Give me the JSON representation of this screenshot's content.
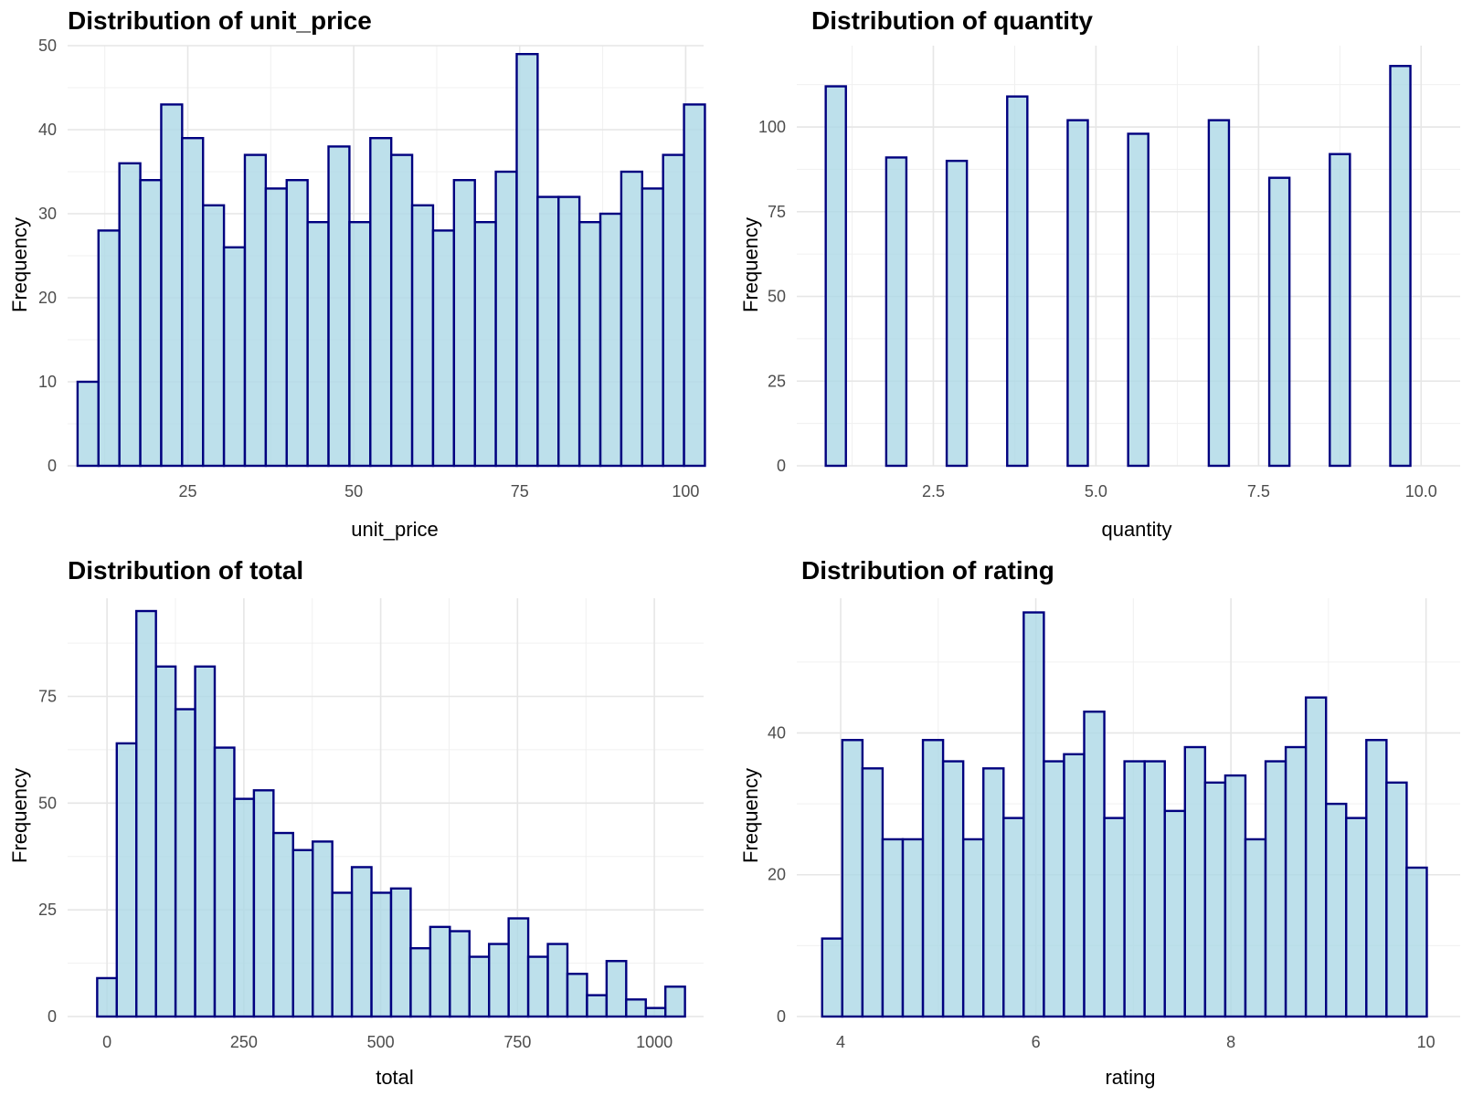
{
  "chart_data": [
    {
      "type": "bar",
      "title": "Distribution of unit_price",
      "xlabel": "unit_price",
      "ylabel": "Frequency",
      "bin_start": 8.4,
      "bin_width": 3.15,
      "values": [
        10,
        28,
        36,
        34,
        43,
        39,
        31,
        26,
        37,
        33,
        34,
        29,
        38,
        29,
        39,
        37,
        31,
        28,
        34,
        29,
        35,
        49,
        32,
        32,
        29,
        30,
        35,
        33,
        37,
        43
      ],
      "xlim": [
        6.9,
        102.7
      ],
      "ylim": [
        0,
        50
      ],
      "x_ticks": [
        25,
        50,
        75,
        100
      ],
      "x_tick_labels": [
        "25",
        "50",
        "75",
        "100"
      ],
      "y_ticks": [
        0,
        10,
        20,
        30,
        40,
        50
      ],
      "y_tick_labels": [
        "0",
        "10",
        "20",
        "30",
        "40",
        "50"
      ]
    },
    {
      "type": "bar",
      "title": "Distribution of quantity",
      "xlabel": "quantity",
      "ylabel": "Frequency",
      "bin_start": 0.845,
      "bin_width": 0.31,
      "values": [
        112,
        0,
        0,
        91,
        0,
        0,
        90,
        0,
        0,
        109,
        0,
        0,
        102,
        0,
        0,
        98,
        0,
        0,
        0,
        102,
        0,
        0,
        85,
        0,
        0,
        92,
        0,
        0,
        118
      ],
      "xlim": [
        0.4,
        10.6
      ],
      "ylim": [
        0,
        124
      ],
      "x_ticks": [
        2.5,
        5.0,
        7.5,
        10.0
      ],
      "x_tick_labels": [
        "2.5",
        "5.0",
        "7.5",
        "10.0"
      ],
      "y_ticks": [
        0,
        25,
        50,
        75,
        100
      ],
      "y_tick_labels": [
        "0",
        "25",
        "50",
        "75",
        "100"
      ]
    },
    {
      "type": "bar",
      "title": "Distribution of total",
      "xlabel": "total",
      "ylabel": "Frequency",
      "bin_start": -18,
      "bin_width": 35.8,
      "values": [
        9,
        64,
        95,
        82,
        72,
        82,
        63,
        51,
        53,
        43,
        39,
        41,
        29,
        35,
        29,
        30,
        16,
        21,
        20,
        14,
        17,
        23,
        14,
        17,
        10,
        5,
        13,
        4,
        2,
        7
      ],
      "xlim": [
        -72,
        1090
      ],
      "ylim": [
        0,
        98
      ],
      "x_ticks": [
        0,
        250,
        500,
        750,
        1000
      ],
      "x_tick_labels": [
        "0",
        "250",
        "500",
        "750",
        "1000"
      ],
      "y_ticks": [
        0,
        25,
        50,
        75
      ],
      "y_tick_labels": [
        "0",
        "25",
        "50",
        "75"
      ]
    },
    {
      "type": "bar",
      "title": "Distribution of rating",
      "xlabel": "rating",
      "ylabel": "Frequency",
      "bin_start": 3.81,
      "bin_width": 0.2066,
      "values": [
        11,
        39,
        35,
        25,
        25,
        39,
        36,
        25,
        35,
        28,
        57,
        36,
        37,
        43,
        28,
        36,
        36,
        29,
        38,
        33,
        34,
        25,
        36,
        38,
        45,
        30,
        28,
        39,
        33,
        21
      ],
      "xlim": [
        3.55,
        10.35
      ],
      "ylim": [
        0,
        59
      ],
      "x_ticks": [
        4,
        6,
        8,
        10
      ],
      "x_tick_labels": [
        "4",
        "6",
        "8",
        "10"
      ],
      "y_ticks": [
        0,
        20,
        40
      ],
      "y_tick_labels": [
        "0",
        "20",
        "40"
      ]
    }
  ]
}
